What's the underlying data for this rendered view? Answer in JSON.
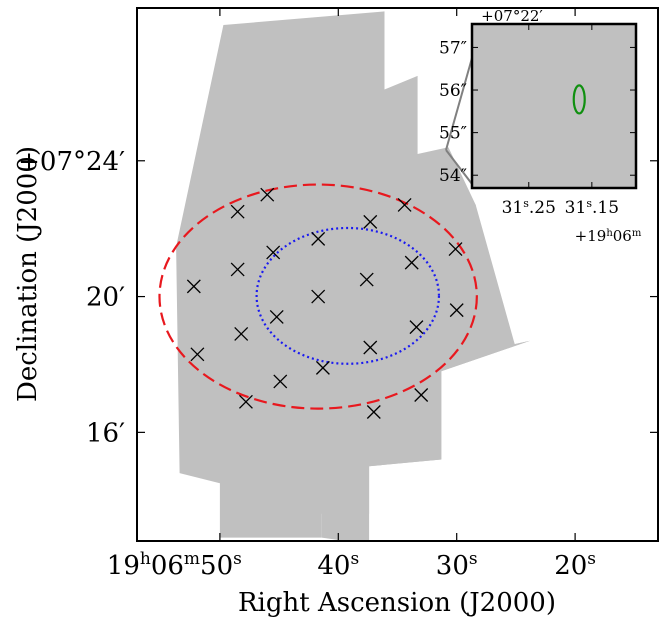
{
  "chart_data": {
    "type": "scatter",
    "title": "",
    "xlabel": "Right Ascension (J2000)",
    "ylabel": "Declination (J2000)",
    "x_unit": "seconds of RA past 19h06m",
    "y_unit": "arcminutes of Dec past +07°",
    "xlim": [
      57,
      13
    ],
    "ylim": [
      12.8,
      28.5
    ],
    "x_ticks": [
      {
        "value": 50,
        "prefix": "19",
        "h": "h",
        "min": "06",
        "m": "m",
        "sec": "50",
        "s": "s"
      },
      {
        "value": 40,
        "prefix": "",
        "sec": "40",
        "s": "s"
      },
      {
        "value": 30,
        "prefix": "",
        "sec": "30",
        "s": "s"
      },
      {
        "value": 20,
        "prefix": "",
        "sec": "20",
        "s": "s"
      }
    ],
    "y_ticks": [
      {
        "value": 24,
        "label": "+07°24′"
      },
      {
        "value": 20,
        "label": "20′"
      },
      {
        "value": 16,
        "label": "16′"
      }
    ],
    "footprint_color": "#c0c0c0",
    "footprint_left": [
      [
        53.7,
        21.47
      ],
      [
        49.7,
        28.0
      ],
      [
        36.1,
        28.4
      ],
      [
        36.1,
        26.1
      ],
      [
        33.3,
        26.5
      ],
      [
        33.3,
        24.2
      ],
      [
        30.7,
        24.4
      ],
      [
        28.4,
        22.7
      ],
      [
        27.6,
        20.7
      ],
      [
        25.1,
        18.6
      ],
      [
        23.8,
        18.7
      ],
      [
        31.3,
        17.8
      ],
      [
        31.3,
        15.2
      ],
      [
        37.4,
        15.0
      ],
      [
        37.4,
        13.6
      ],
      [
        41.4,
        13.6
      ],
      [
        41.4,
        12.9
      ],
      [
        50.0,
        12.9
      ],
      [
        50.0,
        14.5
      ],
      [
        53.4,
        14.8
      ]
    ],
    "footprint_right": [
      [
        41.4,
        12.9
      ],
      [
        41.4,
        25.5
      ],
      [
        36.5,
        26.0
      ],
      [
        33.3,
        24.2
      ],
      [
        28.4,
        22.7
      ],
      [
        25.1,
        18.6
      ],
      [
        23.8,
        18.7
      ],
      [
        31.3,
        17.8
      ],
      [
        31.3,
        15.2
      ],
      [
        37.4,
        15.0
      ],
      [
        37.4,
        12.7
      ]
    ],
    "pointings": {
      "marker": "x",
      "color": "#000000",
      "points": [
        {
          "x": 46.0,
          "y": 23.0
        },
        {
          "x": 48.5,
          "y": 22.5
        },
        {
          "x": 34.4,
          "y": 22.7
        },
        {
          "x": 37.3,
          "y": 22.2
        },
        {
          "x": 41.7,
          "y": 21.7
        },
        {
          "x": 30.1,
          "y": 21.4
        },
        {
          "x": 45.5,
          "y": 21.3
        },
        {
          "x": 33.8,
          "y": 21.0
        },
        {
          "x": 48.5,
          "y": 20.8
        },
        {
          "x": 37.6,
          "y": 20.5
        },
        {
          "x": 52.2,
          "y": 20.3
        },
        {
          "x": 41.7,
          "y": 20.0
        },
        {
          "x": 30.0,
          "y": 19.6
        },
        {
          "x": 45.2,
          "y": 19.4
        },
        {
          "x": 33.4,
          "y": 19.1
        },
        {
          "x": 48.2,
          "y": 18.9
        },
        {
          "x": 37.3,
          "y": 18.5
        },
        {
          "x": 51.9,
          "y": 18.3
        },
        {
          "x": 41.3,
          "y": 17.9
        },
        {
          "x": 44.9,
          "y": 17.5
        },
        {
          "x": 33.0,
          "y": 17.1
        },
        {
          "x": 47.8,
          "y": 16.9
        },
        {
          "x": 37.0,
          "y": 16.6
        }
      ]
    },
    "outer_circle": {
      "center_x": 41.7,
      "center_y": 20.0,
      "radius_x": 13.4,
      "radius_y": 3.3,
      "color": "#e8181e",
      "style": "dashed"
    },
    "inner_ellipse": {
      "center_x": 39.2,
      "center_y": 20.02,
      "radius_x": 7.7,
      "radius_y": 2.0,
      "color": "#1a1af0",
      "style": "dotted"
    },
    "inset": {
      "background": "#c0c0c0",
      "top_label": "+07°22′",
      "y_ticks": [
        {
          "value": 57,
          "label": "57″"
        },
        {
          "value": 56,
          "label": "56″"
        },
        {
          "value": 55,
          "label": "55″"
        },
        {
          "value": 54,
          "label": "54″"
        }
      ],
      "ylim": [
        53.7,
        57.55
      ],
      "x_ticks": [
        {
          "value": 31.25,
          "major": "31",
          "s": "s",
          "minor": ".25"
        },
        {
          "value": 31.15,
          "major": "31",
          "s": "s",
          "minor": ".15"
        }
      ],
      "xlim": [
        31.34,
        31.08
      ],
      "x_offset": {
        "prefix": "+19",
        "h": "h",
        "min": "06",
        "m": "m"
      },
      "source": {
        "center_x": 31.17,
        "center_y": 55.78,
        "radius_x": 0.0087,
        "radius_y": 0.33,
        "color": "#109010"
      },
      "connector_color": "#808080"
    }
  }
}
